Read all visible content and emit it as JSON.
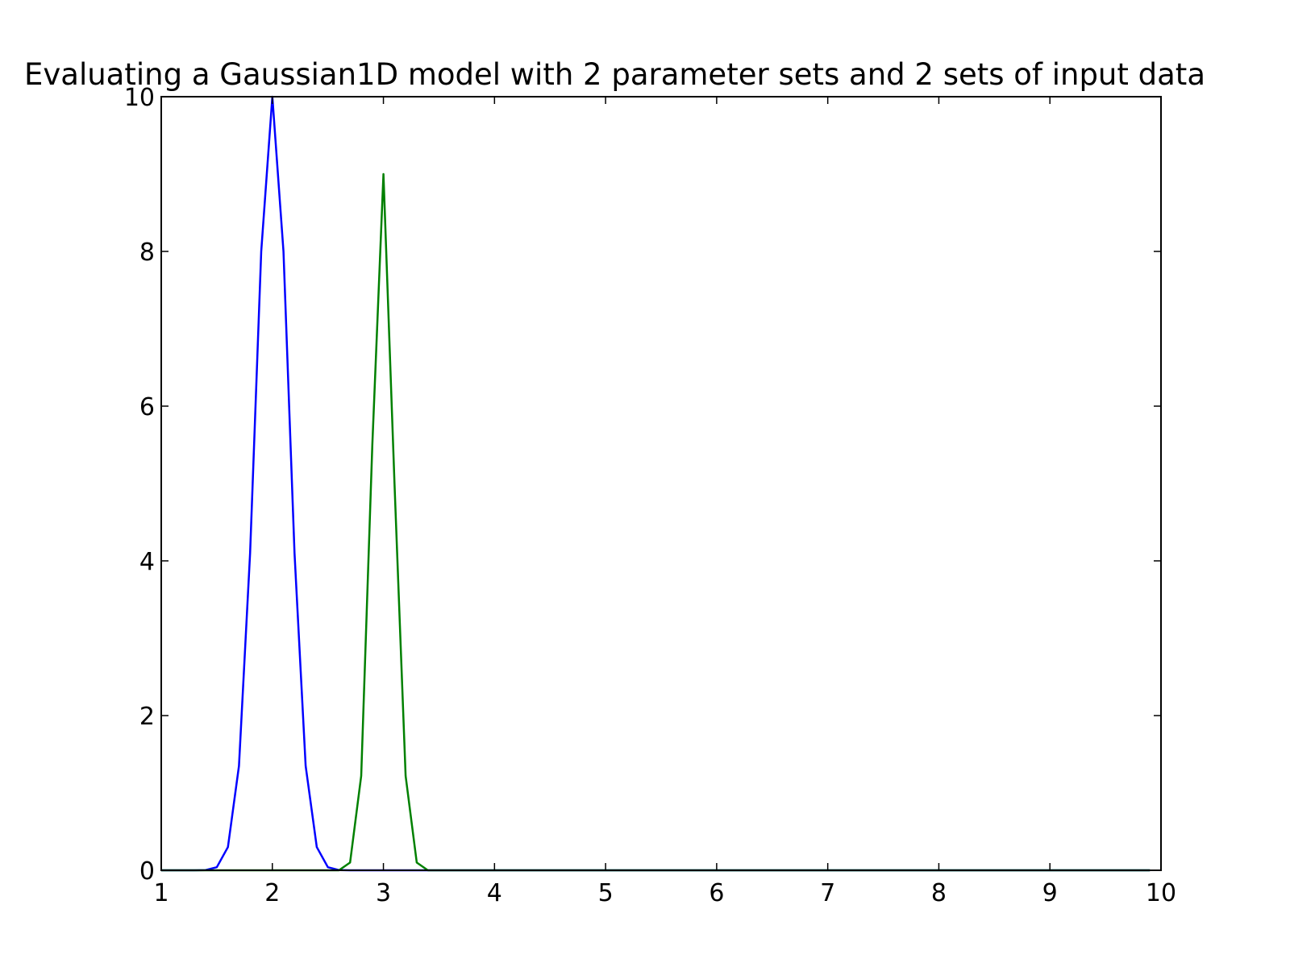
{
  "chart_data": {
    "type": "line",
    "title": "Evaluating a Gaussian1D model with 2 parameter sets and 2 sets of input data",
    "xlabel": "",
    "ylabel": "",
    "xlim": [
      1,
      10
    ],
    "ylim": [
      0,
      10
    ],
    "xticks": [
      "1",
      "2",
      "3",
      "4",
      "5",
      "6",
      "7",
      "8",
      "9",
      "10"
    ],
    "yticks": [
      "0",
      "2",
      "4",
      "6",
      "8",
      "10"
    ],
    "grid": false,
    "legend": "none",
    "x": [
      1.0,
      1.1,
      1.2,
      1.3,
      1.4,
      1.5,
      1.6,
      1.7,
      1.8,
      1.9,
      2.0,
      2.1,
      2.2,
      2.3,
      2.4,
      2.5,
      2.6,
      2.7,
      2.8,
      2.9,
      3.0,
      3.1,
      3.2,
      3.3,
      3.4,
      3.5,
      4.0,
      5.0,
      6.0,
      7.0,
      8.0,
      9.0,
      9.9
    ],
    "series": [
      {
        "color": "#0000ff",
        "values": [
          0,
          0,
          0,
          0,
          0.003,
          0.04,
          0.3,
          1.35,
          4.1,
          8.0,
          10.0,
          8.0,
          4.1,
          1.35,
          0.3,
          0.04,
          0.003,
          0,
          0,
          0,
          0,
          0,
          0,
          0,
          0,
          0,
          0,
          0,
          0,
          0,
          0,
          0,
          0
        ]
      },
      {
        "color": "#008000",
        "values": [
          0,
          0,
          0,
          0,
          0,
          0,
          0,
          0,
          0,
          0,
          0,
          0,
          0,
          0,
          0,
          0,
          0,
          0.1,
          1.22,
          5.5,
          9.0,
          5.0,
          1.22,
          0.1,
          0,
          0,
          0,
          0,
          0,
          0,
          0,
          0,
          0
        ]
      }
    ]
  }
}
